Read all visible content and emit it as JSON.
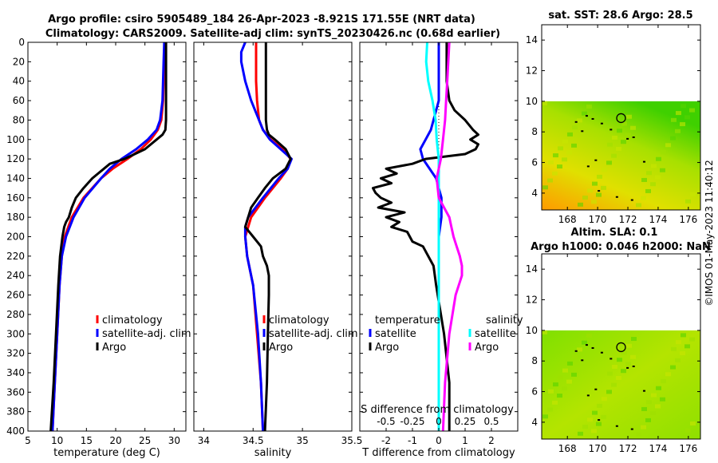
{
  "title": {
    "line1": "Argo profile: csiro 5905489_184 26-Apr-2023 -8.921S 171.55E (NRT data)",
    "line2": "Climatology: CARS2009. Satellite-adj clim: synTS_20230426.nc (0.68d earlier)"
  },
  "stamp": "©IMOS 01-May-2023 11:40:12",
  "colors": {
    "climatology": "#ff0000",
    "satellite": "#0000ff",
    "argo": "#000000",
    "cyan": "#00ffff",
    "magenta": "#ff00ff"
  },
  "chart_data": [
    {
      "type": "line",
      "name": "temperature",
      "xlabel": "temperature (deg C)",
      "xlim": [
        5,
        32
      ],
      "ylim": [
        400,
        0
      ],
      "xticks": [
        "5",
        "10",
        "15",
        "20",
        "25",
        "30"
      ],
      "yticks": [
        "0",
        "20",
        "40",
        "60",
        "80",
        "100",
        "120",
        "140",
        "160",
        "180",
        "200",
        "220",
        "240",
        "260",
        "280",
        "300",
        "320",
        "340",
        "360",
        "380",
        "400"
      ],
      "legend": [
        "climatology",
        "satellite-adj. clim",
        "Argo"
      ],
      "series": [
        {
          "name": "climatology",
          "color": "#ff0000",
          "depth": [
            0,
            20,
            40,
            60,
            80,
            90,
            100,
            110,
            120,
            130,
            140,
            160,
            180,
            200,
            220,
            250,
            300,
            350,
            400
          ],
          "values": [
            28.4,
            28.3,
            28.2,
            28.1,
            27.8,
            27.2,
            26,
            24.3,
            22,
            19.5,
            17.5,
            14.5,
            12.5,
            11.3,
            10.8,
            10.4,
            10,
            9.6,
            9.2
          ]
        },
        {
          "name": "satellite",
          "color": "#0000ff",
          "depth": [
            0,
            20,
            40,
            60,
            80,
            90,
            100,
            110,
            120,
            130,
            140,
            160,
            180,
            200,
            220,
            250,
            300,
            350,
            400
          ],
          "values": [
            28.3,
            28.2,
            28.1,
            28,
            27.6,
            27,
            25.5,
            23.5,
            21,
            19,
            17.5,
            14.7,
            12.8,
            11.5,
            10.8,
            10.4,
            10,
            9.6,
            9.2
          ]
        },
        {
          "name": "Argo",
          "color": "#000000",
          "depth": [
            0,
            20,
            40,
            60,
            80,
            90,
            95,
            100,
            110,
            120,
            125,
            130,
            140,
            150,
            160,
            170,
            180,
            185,
            190,
            200,
            210,
            220,
            250,
            300,
            350,
            400
          ],
          "values": [
            28.6,
            28.6,
            28.6,
            28.6,
            28.6,
            28.5,
            28,
            27,
            25,
            21.5,
            19,
            18,
            16,
            14.5,
            13.2,
            12.5,
            12,
            11.5,
            11.2,
            10.9,
            10.7,
            10.5,
            10.2,
            9.8,
            9.4,
            8.9
          ]
        }
      ]
    },
    {
      "type": "line",
      "name": "salinity",
      "xlabel": "salinity",
      "xlim": [
        33.9,
        35.5
      ],
      "ylim": [
        400,
        0
      ],
      "xticks": [
        "34",
        "34.5",
        "35",
        "35.5"
      ],
      "legend": [
        "climatology",
        "satellite-adj. clim",
        "Argo"
      ],
      "series": [
        {
          "name": "climatology",
          "color": "#ff0000",
          "depth": [
            0,
            20,
            40,
            60,
            80,
            90,
            100,
            110,
            120,
            130,
            140,
            160,
            180,
            200,
            220,
            250,
            300,
            350,
            400
          ],
          "values": [
            34.53,
            34.53,
            34.53,
            34.54,
            34.56,
            34.6,
            34.68,
            34.8,
            34.88,
            34.85,
            34.78,
            34.62,
            34.48,
            34.42,
            34.44,
            34.5,
            34.54,
            34.58,
            34.6
          ]
        },
        {
          "name": "satellite",
          "color": "#0000ff",
          "depth": [
            0,
            10,
            20,
            40,
            60,
            80,
            90,
            100,
            110,
            120,
            130,
            140,
            160,
            180,
            190,
            200,
            220,
            250,
            300,
            350,
            400
          ],
          "values": [
            34.42,
            34.38,
            34.38,
            34.42,
            34.48,
            34.56,
            34.6,
            34.67,
            34.78,
            34.89,
            34.85,
            34.76,
            34.6,
            34.45,
            34.42,
            34.42,
            34.44,
            34.5,
            34.55,
            34.58,
            34.6
          ]
        },
        {
          "name": "Argo",
          "color": "#000000",
          "depth": [
            0,
            20,
            40,
            60,
            80,
            90,
            95,
            100,
            110,
            120,
            130,
            140,
            150,
            160,
            170,
            180,
            190,
            200,
            210,
            220,
            230,
            240,
            260,
            300,
            350,
            400
          ],
          "values": [
            34.63,
            34.63,
            34.63,
            34.63,
            34.63,
            34.64,
            34.66,
            34.72,
            34.83,
            34.88,
            34.83,
            34.7,
            34.62,
            34.55,
            34.48,
            34.45,
            34.42,
            34.5,
            34.58,
            34.6,
            34.64,
            34.66,
            34.66,
            34.65,
            34.64,
            34.62
          ]
        }
      ]
    },
    {
      "type": "line",
      "name": "differences",
      "xlabel": "T difference from climatology",
      "xlabel_top": "S difference from climatology",
      "xlim": [
        -3,
        3
      ],
      "ylim": [
        400,
        0
      ],
      "xticks": [
        "-2",
        "-1",
        "0",
        "1",
        "2"
      ],
      "xticks_top": [
        "-0.5",
        "-0.25",
        "0",
        "0.25",
        "0.5"
      ],
      "legend_temperature": {
        "title": "temperature",
        "items": [
          "satellite",
          "Argo"
        ]
      },
      "legend_salinity": {
        "title": "salinity",
        "items": [
          "satellite",
          "Argo"
        ]
      },
      "series": [
        {
          "name": "temperature satellite",
          "color": "#0000ff",
          "depth": [
            0,
            60,
            80,
            90,
            100,
            110,
            120,
            140,
            160,
            180,
            200,
            220,
            250,
            300,
            350,
            400
          ],
          "values": [
            0,
            0,
            -0.2,
            -0.3,
            -0.5,
            -0.7,
            -0.6,
            -0.1,
            0.1,
            0.1,
            0,
            0,
            0,
            0,
            0,
            0
          ]
        },
        {
          "name": "temperature Argo",
          "color": "#000000",
          "depth": [
            0,
            20,
            40,
            60,
            70,
            80,
            90,
            95,
            100,
            105,
            110,
            115,
            120,
            125,
            130,
            135,
            140,
            145,
            150,
            155,
            160,
            165,
            170,
            175,
            180,
            185,
            190,
            195,
            200,
            205,
            210,
            220,
            230,
            250,
            300,
            350,
            400
          ],
          "values": [
            0.3,
            0.3,
            0.3,
            0.4,
            0.6,
            1,
            1.3,
            1.5,
            1.2,
            1.5,
            1.4,
            1,
            -0.5,
            -1,
            -2,
            -1.6,
            -2.2,
            -1.8,
            -2.5,
            -2.4,
            -2.2,
            -1.8,
            -2.3,
            -1.3,
            -2,
            -1.5,
            -1.8,
            -1.2,
            -1.1,
            -1,
            -0.6,
            -0.4,
            -0.2,
            -0.1,
            0.2,
            0.4,
            0.4
          ]
        },
        {
          "name": "salinity satellite",
          "color": "#00ffff",
          "depth": [
            0,
            20,
            40,
            60,
            80,
            100,
            120,
            140,
            160,
            180,
            200,
            220,
            250,
            300,
            350,
            400
          ],
          "values": [
            -0.11,
            -0.12,
            -0.1,
            -0.06,
            -0.03,
            -0.02,
            0,
            0,
            0,
            0,
            0,
            0,
            0,
            0,
            0,
            0
          ]
        },
        {
          "name": "salinity Argo",
          "color": "#ff00ff",
          "depth": [
            0,
            20,
            40,
            60,
            80,
            100,
            120,
            140,
            160,
            170,
            180,
            190,
            200,
            210,
            220,
            230,
            240,
            260,
            300,
            350,
            400
          ],
          "values": [
            0.1,
            0.09,
            0.08,
            0.07,
            0.06,
            0.04,
            0.02,
            -0.02,
            0,
            0.05,
            0.1,
            0.12,
            0.14,
            0.17,
            0.2,
            0.22,
            0.22,
            0.16,
            0.1,
            0.06,
            0.04
          ]
        }
      ]
    },
    {
      "type": "heatmap",
      "name": "sst-map",
      "title": "sat. SST: 28.6 Argo: 28.5",
      "xticks": [
        "168",
        "170",
        "172",
        "174",
        "176"
      ],
      "yticks": [
        "4",
        "6",
        "8",
        "10",
        "12",
        "14"
      ],
      "xlim": [
        166.3,
        176.8
      ],
      "ylim": [
        2.9,
        15
      ],
      "data_top_lat": 10,
      "float_position": {
        "lon": 171.55,
        "lat": 8.9
      }
    },
    {
      "type": "heatmap",
      "name": "sla-map",
      "title_line1": "Altim. SLA: 0.1",
      "title_line2": "Argo h1000: 0.046 h2000: NaN",
      "xticks": [
        "168",
        "170",
        "172",
        "174",
        "176"
      ],
      "yticks": [
        "4",
        "6",
        "8",
        "10",
        "12",
        "14"
      ],
      "xlim": [
        166.3,
        176.8
      ],
      "ylim": [
        2.9,
        15
      ],
      "data_top_lat": 10,
      "float_position": {
        "lon": 171.55,
        "lat": 8.9
      }
    }
  ]
}
